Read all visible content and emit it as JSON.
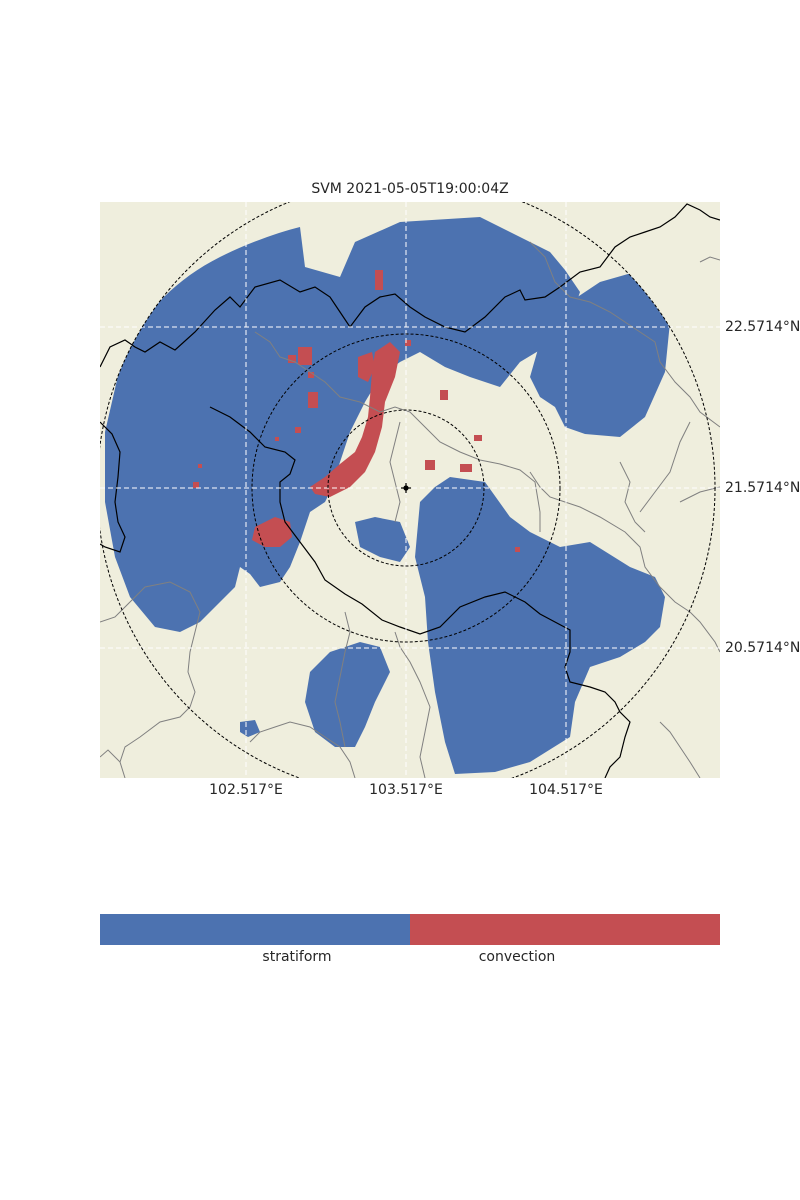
{
  "title": "SVM 2021-05-05T19:00:04Z",
  "colors": {
    "background": "#efeedd",
    "stratiform": "#4c72b0",
    "convection": "#c44e52",
    "grid": "#ffffff",
    "border": "#000000",
    "province": "#808080",
    "range_ring": "#000000"
  },
  "map": {
    "center": {
      "lon": 103.517,
      "lat": 21.5714
    },
    "lon_ticks": [
      102.517,
      103.517,
      104.517
    ],
    "lat_ticks": [
      20.5714,
      21.5714,
      22.5714
    ],
    "lon_labels": [
      "102.517°E",
      "103.517°E",
      "104.517°E"
    ],
    "lat_labels": [
      "22.5714°N",
      "21.5714°N",
      "20.5714°N"
    ],
    "range_rings": [
      "inner",
      "middle",
      "outer"
    ],
    "radar_marker": "crosshair-icon"
  },
  "colorbar": {
    "categories": [
      "stratiform",
      "convection"
    ],
    "labels": [
      "stratiform",
      "convection"
    ]
  }
}
